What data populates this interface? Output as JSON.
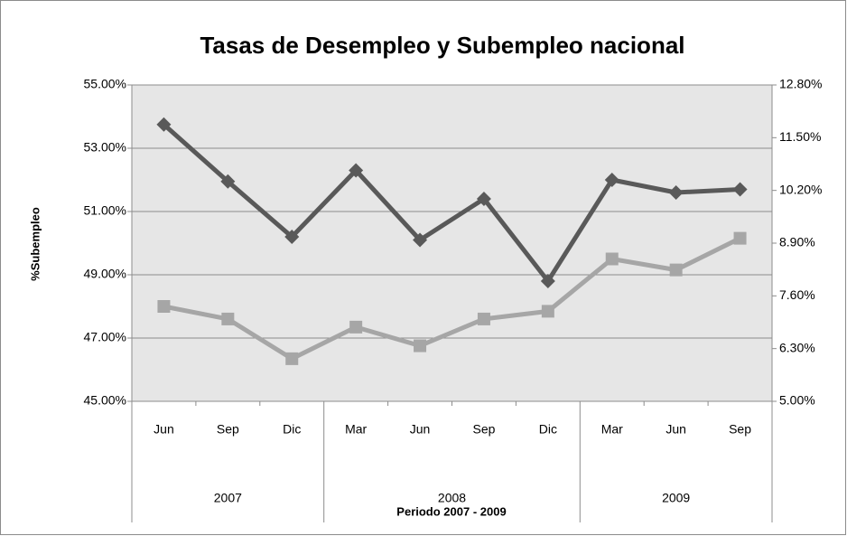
{
  "chart_data": {
    "type": "line",
    "title": "Tasas de Desempleo y Subempleo nacional",
    "y_label": "%Subempleo",
    "x_label": "Periodo 2007 - 2009",
    "groups": [
      {
        "label": "2007",
        "categories": [
          "Jun",
          "Sep",
          "Dic"
        ]
      },
      {
        "label": "2008",
        "categories": [
          "Mar",
          "Jun",
          "Sep",
          "Dic"
        ]
      },
      {
        "label": "2009",
        "categories": [
          "Mar",
          "Jun",
          "Sep"
        ]
      }
    ],
    "series": [
      {
        "color": "#595959",
        "marker": "diamond",
        "values": [
          53.75,
          51.95,
          50.2,
          52.3,
          50.1,
          51.4,
          48.8,
          52.0,
          51.6,
          51.7
        ]
      },
      {
        "color": "#a6a6a6",
        "marker": "square",
        "axis": "y2",
        "values": [
          7.34,
          7.03,
          6.05,
          6.83,
          6.37,
          7.03,
          7.22,
          8.51,
          8.24,
          9.02
        ]
      }
    ],
    "ylim": [
      45,
      55
    ],
    "yticks": [
      {
        "value": 45,
        "label": "45.00%"
      },
      {
        "value": 47,
        "label": "47.00%"
      },
      {
        "value": 49,
        "label": "49.00%"
      },
      {
        "value": 51,
        "label": "51.00%"
      },
      {
        "value": 53,
        "label": "53.00%"
      },
      {
        "value": 55,
        "label": "55.00%"
      }
    ],
    "y2lim": [
      5,
      12.8
    ],
    "y2ticks": [
      {
        "value": 5,
        "label": "5.00%"
      },
      {
        "value": 6.3,
        "label": "6.30%"
      },
      {
        "value": 7.6,
        "label": "7.60%"
      },
      {
        "value": 8.9,
        "label": "8.90%"
      },
      {
        "value": 10.2,
        "label": "10.20%"
      },
      {
        "value": 11.5,
        "label": "11.50%"
      },
      {
        "value": 12.8,
        "label": "12.80%"
      }
    ],
    "grid": true
  }
}
